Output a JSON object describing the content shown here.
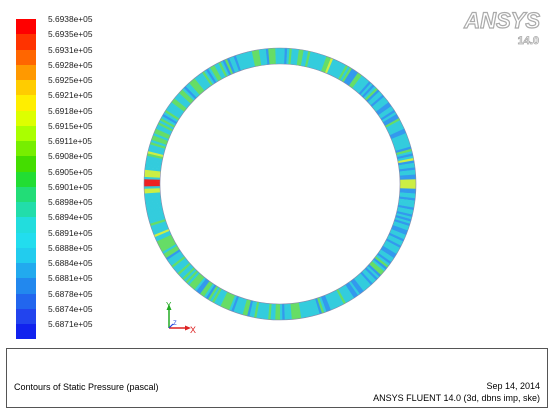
{
  "colormap": {
    "labels": [
      "5.6938e+05",
      "5.6935e+05",
      "5.6931e+05",
      "5.6928e+05",
      "5.6925e+05",
      "5.6921e+05",
      "5.6918e+05",
      "5.6915e+05",
      "5.6911e+05",
      "5.6908e+05",
      "5.6905e+05",
      "5.6901e+05",
      "5.6898e+05",
      "5.6894e+05",
      "5.6891e+05",
      "5.6888e+05",
      "5.6884e+05",
      "5.6881e+05",
      "5.6878e+05",
      "5.6874e+05",
      "5.6871e+05"
    ],
    "colors": [
      "#ff0000",
      "#ff3300",
      "#ff6600",
      "#ff9900",
      "#ffcc00",
      "#ffee00",
      "#ddff00",
      "#aaff00",
      "#77ee00",
      "#44dd00",
      "#22dd33",
      "#22dd77",
      "#22ddaa",
      "#22dddd",
      "#22ddee",
      "#22ccee",
      "#22aaee",
      "#2288ee",
      "#2266ee",
      "#2244ee",
      "#1122ee"
    ]
  },
  "logo": {
    "text": "ANSYS",
    "version": "14.0"
  },
  "triad": {
    "y_label": "Y",
    "z_label": "Z",
    "x_label": "X"
  },
  "footer": {
    "title": "Contours of Static Pressure (pascal)",
    "date": "Sep 14, 2014",
    "product": "ANSYS FLUENT 14.0 (3d, dbns imp, ske)"
  },
  "colors": {
    "ring_base": "#33ccdd",
    "ring_green": "#66dd66",
    "ring_blue": "#3399ee",
    "ring_yellow": "#ccee44",
    "ring_red": "#ee2222"
  }
}
